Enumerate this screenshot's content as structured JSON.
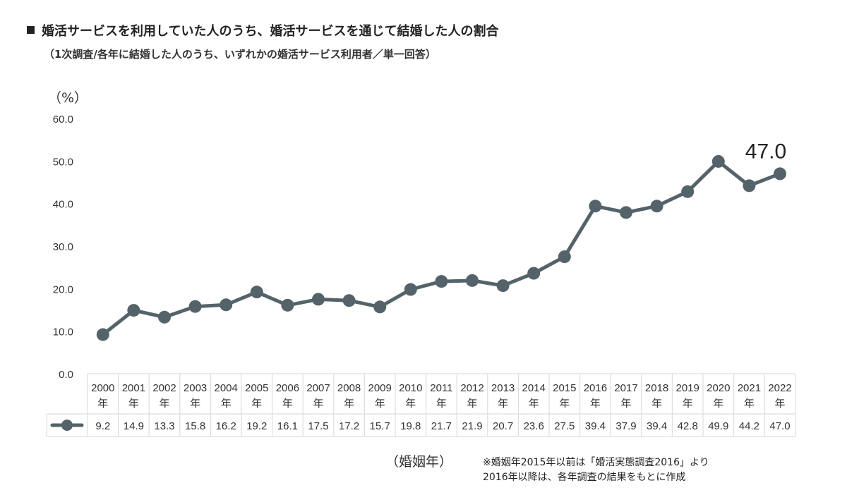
{
  "title": "婚活サービスを利用していた人のうち、婚活サービスを通じて結婚した人の割合",
  "subtitle": "（1次調査/各年に結婚した人のうち、いずれかの婚活サービス利用者／単一回答）",
  "unit_label": "（%）",
  "xaxis_label": "（婚姻年）",
  "note_line1": "※婚姻年2015年以前は「婚活実態調査2016」より",
  "note_line2": "2016年以降は、各年調査の結果をもとに作成",
  "colors": {
    "series": "#546269",
    "grid": "#dddddd",
    "text": "#333333"
  },
  "legend_icon": "line-with-marker-icon",
  "chart_data": {
    "type": "line",
    "title": "婚活サービスを利用していた人のうち、婚活サービスを通じて結婚した人の割合",
    "ylabel": "（%）",
    "xlabel": "（婚姻年）",
    "ylim": [
      0,
      60
    ],
    "yticks": [
      "0.0",
      "10.0",
      "20.0",
      "30.0",
      "40.0",
      "50.0",
      "60.0"
    ],
    "grid": false,
    "categories": [
      "2000年",
      "2001年",
      "2002年",
      "2003年",
      "2004年",
      "2005年",
      "2006年",
      "2007年",
      "2008年",
      "2009年",
      "2010年",
      "2011年",
      "2012年",
      "2013年",
      "2014年",
      "2015年",
      "2016年",
      "2017年",
      "2018年",
      "2019年",
      "2020年",
      "2021年",
      "2022年"
    ],
    "category_years": [
      "2000",
      "2001",
      "2002",
      "2003",
      "2004",
      "2005",
      "2006",
      "2007",
      "2008",
      "2009",
      "2010",
      "2011",
      "2012",
      "2013",
      "2014",
      "2015",
      "2016",
      "2017",
      "2018",
      "2019",
      "2020",
      "2021",
      "2022"
    ],
    "category_suffix": "年",
    "series": [
      {
        "values": [
          9.2,
          14.9,
          13.3,
          15.8,
          16.2,
          19.2,
          16.1,
          17.5,
          17.2,
          15.7,
          19.8,
          21.7,
          21.9,
          20.7,
          23.6,
          27.5,
          39.4,
          37.9,
          39.4,
          42.8,
          49.9,
          44.2,
          47.0
        ],
        "labels": [
          "9.2",
          "14.9",
          "13.3",
          "15.8",
          "16.2",
          "19.2",
          "16.1",
          "17.5",
          "17.2",
          "15.7",
          "19.8",
          "21.7",
          "21.9",
          "20.7",
          "23.6",
          "27.5",
          "39.4",
          "37.9",
          "39.4",
          "42.8",
          "49.9",
          "44.2",
          "47.0"
        ]
      }
    ],
    "annotation": "47.0"
  }
}
